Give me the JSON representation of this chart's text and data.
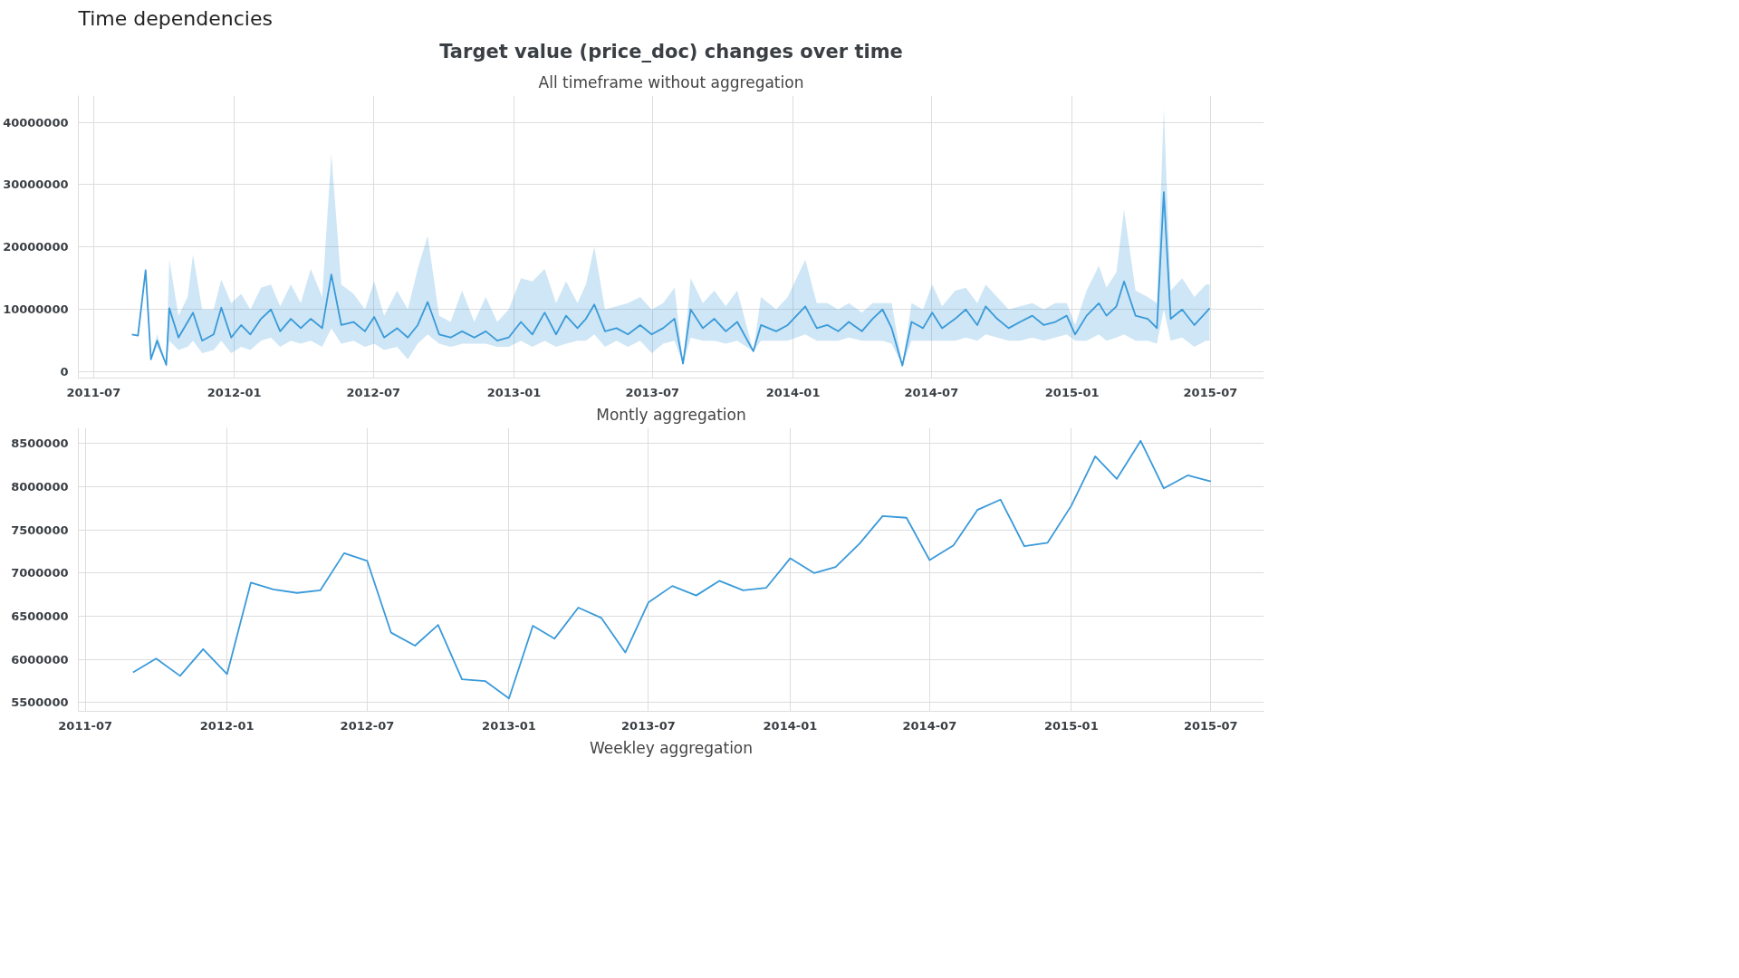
{
  "chart_data": [
    {
      "type": "line",
      "title": "Target value (price_doc) changes over time",
      "subtitle": "All timeframe without aggregation",
      "annotations": [
        "Time dependencies"
      ],
      "grid": true,
      "xlim": [
        "2011-06-11",
        "2015-09-09"
      ],
      "xticks": [
        "2011-07",
        "2012-01",
        "2012-07",
        "2013-01",
        "2013-07",
        "2014-01",
        "2014-07",
        "2015-01",
        "2015-07"
      ],
      "ylim": [
        -1000000,
        44300000
      ],
      "yticks": [
        0,
        10000000,
        20000000,
        30000000,
        40000000
      ],
      "x": [
        "2011-08-20",
        "2011-08-28",
        "2011-09-07",
        "2011-09-14",
        "2011-09-22",
        "2011-10-04",
        "2011-10-08",
        "2011-10-20",
        "2011-11-01",
        "2011-11-08",
        "2011-11-20",
        "2011-12-05",
        "2011-12-15",
        "2011-12-28",
        "2012-01-10",
        "2012-01-22",
        "2012-02-05",
        "2012-02-18",
        "2012-03-01",
        "2012-03-15",
        "2012-03-28",
        "2012-04-10",
        "2012-04-25",
        "2012-05-07",
        "2012-05-20",
        "2012-06-05",
        "2012-06-20",
        "2012-07-02",
        "2012-07-15",
        "2012-08-01",
        "2012-08-15",
        "2012-08-28",
        "2012-09-10",
        "2012-09-25",
        "2012-10-10",
        "2012-10-25",
        "2012-11-10",
        "2012-11-25",
        "2012-12-10",
        "2012-12-25",
        "2013-01-10",
        "2013-01-25",
        "2013-02-10",
        "2013-02-25",
        "2013-03-10",
        "2013-03-25",
        "2013-04-05",
        "2013-04-16",
        "2013-04-30",
        "2013-05-15",
        "2013-05-30",
        "2013-06-15",
        "2013-06-30",
        "2013-07-15",
        "2013-07-30",
        "2013-08-10",
        "2013-08-20",
        "2013-09-05",
        "2013-09-20",
        "2013-10-05",
        "2013-10-20",
        "2013-11-10",
        "2013-11-20",
        "2013-12-10",
        "2013-12-25",
        "2014-01-17",
        "2014-02-01",
        "2014-02-15",
        "2014-03-01",
        "2014-03-15",
        "2014-04-01",
        "2014-04-15",
        "2014-04-28",
        "2014-05-10",
        "2014-05-24",
        "2014-06-05",
        "2014-06-20",
        "2014-07-02",
        "2014-07-15",
        "2014-08-01",
        "2014-08-15",
        "2014-08-30",
        "2014-09-10",
        "2014-09-25",
        "2014-10-10",
        "2014-10-25",
        "2014-11-10",
        "2014-11-25",
        "2014-12-10",
        "2014-12-25",
        "2015-01-05",
        "2015-01-20",
        "2015-02-05",
        "2015-02-15",
        "2015-02-28",
        "2015-03-10",
        "2015-03-25",
        "2015-04-10",
        "2015-04-22",
        "2015-05-01",
        "2015-05-10",
        "2015-05-25",
        "2015-06-10",
        "2015-06-25",
        "2015-06-30"
      ],
      "series": [
        {
          "color": "#3a9ad9",
          "values": [
            6000000,
            5800000,
            16300000,
            2000000,
            5000000,
            1100000,
            10200000,
            5500000,
            8000000,
            9500000,
            5000000,
            6000000,
            10300000,
            5500000,
            7500000,
            6000000,
            8500000,
            10000000,
            6500000,
            8500000,
            7000000,
            8500000,
            7000000,
            15600000,
            7500000,
            8000000,
            6500000,
            8800000,
            5500000,
            7000000,
            5500000,
            7500000,
            11200000,
            6000000,
            5500000,
            6500000,
            5500000,
            6500000,
            5000000,
            5500000,
            8000000,
            6000000,
            9500000,
            6000000,
            9000000,
            7000000,
            8500000,
            10800000,
            6500000,
            7000000,
            6000000,
            7500000,
            6000000,
            7000000,
            8500000,
            1300000,
            10000000,
            7000000,
            8500000,
            6500000,
            8000000,
            3300000,
            7500000,
            6500000,
            7500000,
            10500000,
            7000000,
            7500000,
            6500000,
            8000000,
            6500000,
            8500000,
            10000000,
            7000000,
            1000000,
            8000000,
            7000000,
            9500000,
            7000000,
            8500000,
            10000000,
            7500000,
            10500000,
            8500000,
            7000000,
            8000000,
            9000000,
            7500000,
            8000000,
            9000000,
            6000000,
            9000000,
            11000000,
            9000000,
            10500000,
            14500000,
            9000000,
            8500000,
            7000000,
            28800000,
            8500000,
            10000000,
            7500000,
            9500000,
            10200000
          ],
          "lower": [
            6000000,
            5800000,
            16300000,
            2000000,
            4000000,
            1100000,
            5000000,
            3500000,
            4000000,
            5000000,
            3000000,
            3500000,
            5000000,
            3000000,
            4000000,
            3500000,
            5000000,
            5500000,
            4000000,
            5000000,
            4500000,
            5000000,
            4000000,
            7000000,
            4500000,
            5000000,
            4000000,
            4500000,
            3500000,
            4000000,
            2000000,
            4500000,
            6000000,
            4500000,
            4000000,
            4500000,
            4500000,
            4500000,
            4000000,
            4000000,
            5000000,
            4000000,
            5000000,
            4000000,
            4500000,
            5000000,
            5000000,
            6000000,
            4000000,
            5000000,
            4000000,
            5000000,
            3000000,
            4500000,
            5000000,
            1300000,
            5500000,
            5000000,
            5000000,
            4500000,
            5000000,
            3300000,
            5000000,
            5000000,
            5000000,
            6000000,
            5000000,
            5000000,
            5000000,
            5500000,
            5000000,
            5000000,
            5000000,
            4500000,
            1000000,
            5000000,
            5000000,
            5000000,
            5000000,
            5000000,
            5500000,
            5000000,
            6000000,
            5500000,
            5000000,
            5000000,
            5500000,
            5000000,
            5500000,
            6000000,
            5000000,
            5000000,
            6000000,
            5000000,
            5500000,
            6000000,
            5000000,
            5000000,
            4500000,
            10000000,
            5000000,
            5500000,
            4000000,
            5000000,
            5000000
          ],
          "upper": [
            6000000,
            5800000,
            16300000,
            2000000,
            6000000,
            1100000,
            18000000,
            9000000,
            12000000,
            18800000,
            10000000,
            10000000,
            14800000,
            11000000,
            12500000,
            10000000,
            13500000,
            14000000,
            10500000,
            14000000,
            11000000,
            16500000,
            12000000,
            35000000,
            14000000,
            12500000,
            10000000,
            14500000,
            9000000,
            13000000,
            10000000,
            16500000,
            21800000,
            9000000,
            8000000,
            13000000,
            8000000,
            12000000,
            8000000,
            10000000,
            15000000,
            14500000,
            16500000,
            11000000,
            14500000,
            11000000,
            14000000,
            20000000,
            10000000,
            10500000,
            11000000,
            12000000,
            10000000,
            11000000,
            13500000,
            1300000,
            15000000,
            11000000,
            13000000,
            10500000,
            13000000,
            3300000,
            12000000,
            10000000,
            12000000,
            18000000,
            11000000,
            11000000,
            10000000,
            11000000,
            9500000,
            11000000,
            11000000,
            11000000,
            1000000,
            11000000,
            10000000,
            14000000,
            10500000,
            13000000,
            13500000,
            11000000,
            14000000,
            12000000,
            10000000,
            10500000,
            11000000,
            10000000,
            11000000,
            11000000,
            7500000,
            13000000,
            17000000,
            13500000,
            16000000,
            26000000,
            13000000,
            12000000,
            11000000,
            42200000,
            13000000,
            15000000,
            12000000,
            14000000,
            14000000
          ]
        }
      ]
    },
    {
      "type": "line",
      "subtitle": "Montly aggregation",
      "annotations": [
        "Weekley aggregation"
      ],
      "grid": true,
      "xlim": [
        "2011-06-22",
        "2015-09-08"
      ],
      "xticks": [
        "2011-07",
        "2012-01",
        "2012-07",
        "2013-01",
        "2013-07",
        "2014-01",
        "2014-07",
        "2015-01",
        "2015-07"
      ],
      "ylim": [
        5400000,
        8680000
      ],
      "yticks": [
        5500000,
        6000000,
        6500000,
        7000000,
        7500000,
        8000000,
        8500000
      ],
      "x": [
        "2011-09",
        "2011-10",
        "2011-11",
        "2011-12",
        "2012-01",
        "2012-02",
        "2012-03",
        "2012-04",
        "2012-05",
        "2012-06",
        "2012-07",
        "2012-08",
        "2012-09",
        "2012-10",
        "2012-11",
        "2012-12",
        "2013-01",
        "2013-02",
        "2013-03",
        "2013-04",
        "2013-05",
        "2013-06",
        "2013-07",
        "2013-08",
        "2013-09",
        "2013-10",
        "2013-11",
        "2013-12",
        "2014-01",
        "2014-02",
        "2014-03",
        "2014-04",
        "2014-05",
        "2014-06",
        "2014-07",
        "2014-08",
        "2014-09",
        "2014-10",
        "2014-11",
        "2014-12",
        "2015-01",
        "2015-02",
        "2015-03",
        "2015-04",
        "2015-05",
        "2015-06",
        "2015-07"
      ],
      "series": [
        {
          "color": "#3a9ad9",
          "values": [
            5850000,
            6010000,
            5810000,
            6120000,
            5830000,
            6890000,
            6810000,
            6770000,
            6800000,
            7230000,
            7140000,
            6310000,
            6160000,
            6400000,
            5770000,
            5750000,
            5550000,
            6390000,
            6240000,
            6600000,
            6480000,
            6080000,
            6660000,
            6850000,
            6740000,
            6910000,
            6800000,
            6830000,
            7170000,
            7000000,
            7070000,
            7340000,
            7660000,
            7640000,
            7150000,
            7320000,
            7730000,
            7850000,
            7310000,
            7350000,
            7780000,
            8350000,
            8090000,
            8530000,
            7980000,
            8130000,
            8060000
          ]
        }
      ]
    }
  ]
}
